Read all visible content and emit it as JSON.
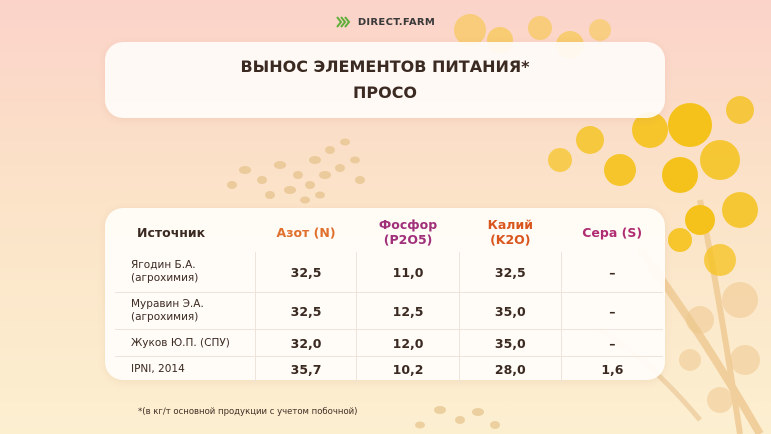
{
  "brand": {
    "name": "DIRECT.FARM",
    "icon": "chevrons-logo-icon",
    "color": "#5fae3a"
  },
  "title": {
    "line1": "ВЫНОС ЭЛЕМЕНТОВ ПИТАНИЯ*",
    "line2": "ПРОСО"
  },
  "table": {
    "headers": {
      "source": "Источник",
      "nitrogen": "Азот (N)",
      "phosphorus_1": "Фосфор",
      "phosphorus_2": "(P2O5)",
      "potassium_1": "Калий",
      "potassium_2": "(K2O)",
      "sulfur": "Сера (S)"
    },
    "rows": [
      {
        "source_1": "Ягодин Б.А.",
        "source_2": "(агрохимия)",
        "n": "32,5",
        "p": "11,0",
        "k": "32,5",
        "s": "–"
      },
      {
        "source_1": "Муравин Э.А.",
        "source_2": "(агрохимия)",
        "n": "32,5",
        "p": "12,5",
        "k": "35,0",
        "s": "–"
      },
      {
        "source_1": "Жуков Ю.П. (СПУ)",
        "source_2": "",
        "n": "32,0",
        "p": "12,0",
        "k": "35,0",
        "s": "–"
      },
      {
        "source_1": "IPNI, 2014",
        "source_2": "",
        "n": "35,7",
        "p": "10,2",
        "k": "28,0",
        "s": "1,6"
      }
    ]
  },
  "footnote": "*(в кг/т основной продукции с учетом побочной)",
  "colors": {
    "nitrogen": "#e0702e",
    "phosphorus": "#a0307a",
    "potassium": "#d9561f",
    "sulfur": "#b02c72",
    "flower": "#f5c21b",
    "seed": "#e6c38c"
  }
}
